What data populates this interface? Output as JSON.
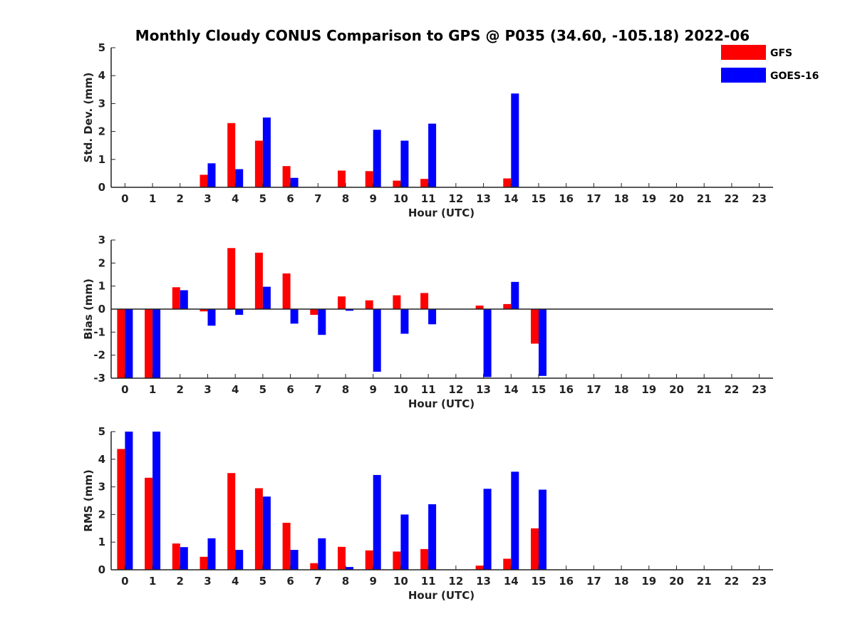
{
  "chart_data": {
    "title": "Monthly Cloudy CONUS Comparison to GPS @ P035 (34.60, -105.18) 2022-06",
    "type": "bar",
    "legend": {
      "position": "top-right",
      "entries": [
        {
          "name": "GFS",
          "color": "#ff0000"
        },
        {
          "name": "GOES-16",
          "color": "#0000ff"
        }
      ]
    },
    "categories": [
      "0",
      "1",
      "2",
      "3",
      "4",
      "5",
      "6",
      "7",
      "8",
      "9",
      "10",
      "11",
      "12",
      "13",
      "14",
      "15",
      "16",
      "17",
      "18",
      "19",
      "20",
      "21",
      "22",
      "23"
    ],
    "panels": [
      {
        "ylabel": "Std. Dev. (mm)",
        "xlabel": "Hour (UTC)",
        "ylim": [
          0,
          5
        ],
        "yticks": [
          "0",
          "1",
          "2",
          "3",
          "4",
          "5"
        ],
        "series": [
          {
            "name": "GFS",
            "values": [
              null,
              null,
              null,
              0.45,
              2.3,
              1.67,
              0.76,
              null,
              0.6,
              0.58,
              0.24,
              0.3,
              null,
              null,
              0.32,
              null,
              null,
              null,
              null,
              null,
              null,
              null,
              null,
              null
            ]
          },
          {
            "name": "GOES-16",
            "values": [
              null,
              null,
              null,
              0.86,
              0.65,
              2.5,
              0.34,
              null,
              null,
              2.06,
              1.67,
              2.28,
              null,
              null,
              3.36,
              null,
              null,
              null,
              null,
              null,
              null,
              null,
              null,
              null
            ]
          }
        ]
      },
      {
        "ylabel": "Bias (mm)",
        "xlabel": "Hour (UTC)",
        "ylim": [
          -3,
          3
        ],
        "yticks": [
          "-3",
          "-2",
          "-1",
          "0",
          "1",
          "2",
          "3"
        ],
        "series": [
          {
            "name": "GFS",
            "values": [
              -3.0,
              -3.0,
              0.95,
              -0.1,
              2.65,
              2.45,
              1.55,
              -0.25,
              0.55,
              0.38,
              0.6,
              0.7,
              null,
              0.15,
              0.22,
              -1.5,
              null,
              null,
              null,
              null,
              null,
              null,
              null,
              null
            ]
          },
          {
            "name": "GOES-16",
            "values": [
              -3.0,
              -3.0,
              0.82,
              -0.72,
              -0.25,
              0.97,
              -0.63,
              -1.12,
              -0.07,
              -2.72,
              -1.07,
              -0.66,
              null,
              -2.95,
              1.18,
              -2.9,
              null,
              null,
              null,
              null,
              null,
              null,
              null,
              null
            ]
          }
        ]
      },
      {
        "ylabel": "RMS (mm)",
        "xlabel": "Hour (UTC)",
        "ylim": [
          0,
          5
        ],
        "yticks": [
          "0",
          "1",
          "2",
          "3",
          "4",
          "5"
        ],
        "series": [
          {
            "name": "GFS",
            "values": [
              4.37,
              3.33,
              0.95,
              0.47,
              3.5,
              2.95,
              1.7,
              0.24,
              0.83,
              0.7,
              0.66,
              0.75,
              null,
              0.15,
              0.4,
              1.5,
              null,
              null,
              null,
              null,
              null,
              null,
              null,
              null
            ]
          },
          {
            "name": "GOES-16",
            "values": [
              5.0,
              5.0,
              0.82,
              1.14,
              0.72,
              2.65,
              0.72,
              1.14,
              0.1,
              3.43,
              2.0,
              2.37,
              null,
              2.93,
              3.55,
              2.9,
              null,
              null,
              null,
              null,
              null,
              null,
              null,
              null
            ]
          }
        ]
      }
    ]
  }
}
